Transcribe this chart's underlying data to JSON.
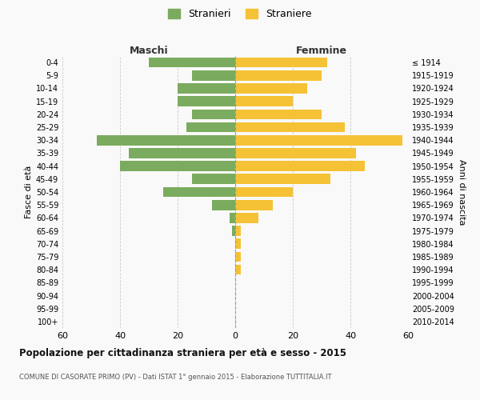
{
  "age_groups": [
    "0-4",
    "5-9",
    "10-14",
    "15-19",
    "20-24",
    "25-29",
    "30-34",
    "35-39",
    "40-44",
    "45-49",
    "50-54",
    "55-59",
    "60-64",
    "65-69",
    "70-74",
    "75-79",
    "80-84",
    "85-89",
    "90-94",
    "95-99",
    "100+"
  ],
  "birth_years": [
    "2010-2014",
    "2005-2009",
    "2000-2004",
    "1995-1999",
    "1990-1994",
    "1985-1989",
    "1980-1984",
    "1975-1979",
    "1970-1974",
    "1965-1969",
    "1960-1964",
    "1955-1959",
    "1950-1954",
    "1945-1949",
    "1940-1944",
    "1935-1939",
    "1930-1934",
    "1925-1929",
    "1920-1924",
    "1915-1919",
    "≤ 1914"
  ],
  "maschi": [
    30,
    15,
    20,
    20,
    15,
    17,
    48,
    37,
    40,
    15,
    25,
    8,
    2,
    1,
    0,
    0,
    0,
    0,
    0,
    0,
    0
  ],
  "femmine": [
    32,
    30,
    25,
    20,
    30,
    38,
    58,
    42,
    45,
    33,
    20,
    13,
    8,
    2,
    2,
    2,
    2,
    0,
    0,
    0,
    0
  ],
  "color_maschi": "#7aab5e",
  "color_femmine": "#f5c235",
  "title": "Popolazione per cittadinanza straniera per età e sesso - 2015",
  "subtitle": "COMUNE DI CASORATE PRIMO (PV) - Dati ISTAT 1° gennaio 2015 - Elaborazione TUTTITALIA.IT",
  "ylabel_left": "Fasce di età",
  "ylabel_right": "Anni di nascita",
  "xlabel_left": "Maschi",
  "xlabel_right": "Femmine",
  "legend_maschi": "Stranieri",
  "legend_femmine": "Straniere",
  "xlim": 60,
  "background_color": "#f9f9f9",
  "grid_color": "#cccccc"
}
